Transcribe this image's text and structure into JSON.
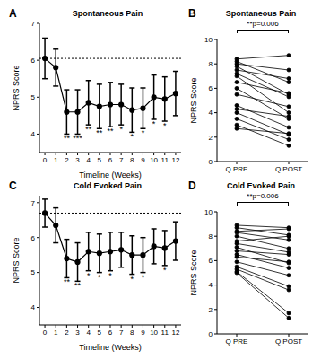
{
  "chart_data": [
    {
      "panel": "A",
      "type": "line",
      "title": "Spontaneous Pain",
      "x_label": "Timeline (Weeks)",
      "y_label": "NPRS Score",
      "x": [
        0,
        1,
        2,
        3,
        4,
        5,
        6,
        7,
        8,
        9,
        10,
        11,
        12
      ],
      "values": [
        6.05,
        5.8,
        4.6,
        4.6,
        4.85,
        4.75,
        4.8,
        4.8,
        4.65,
        4.7,
        5.0,
        4.95,
        5.1
      ],
      "errors": [
        0.55,
        0.5,
        0.6,
        0.6,
        0.6,
        0.6,
        0.6,
        0.55,
        0.6,
        0.55,
        0.6,
        0.6,
        0.6
      ],
      "significance": [
        null,
        null,
        "**",
        "***",
        "**",
        "**",
        "**",
        "*",
        "*",
        "*",
        "*",
        "*",
        null
      ],
      "reference_line": 6.05,
      "xlim": [
        -0.5,
        12.5
      ],
      "xticks": [
        0,
        1,
        2,
        3,
        4,
        5,
        6,
        7,
        8,
        9,
        10,
        11,
        12
      ],
      "ylim": [
        3.5,
        7
      ],
      "yticks": [
        4,
        5,
        6,
        7
      ],
      "color": "#000000",
      "marker": "circle",
      "line_style": "solid"
    },
    {
      "panel": "B",
      "type": "line",
      "title": "Spontaneous Pain",
      "y_label": "NPRS Score",
      "categories": [
        "Q PRE",
        "Q POST"
      ],
      "series": [
        {
          "values": [
            8.4,
            8.7
          ]
        },
        {
          "values": [
            8.2,
            6.5
          ]
        },
        {
          "values": [
            8.0,
            7.5
          ]
        },
        {
          "values": [
            7.8,
            5.5
          ]
        },
        {
          "values": [
            7.5,
            6.8
          ]
        },
        {
          "values": [
            7.2,
            5.3
          ]
        },
        {
          "values": [
            7.0,
            4.0
          ]
        },
        {
          "values": [
            6.5,
            5.6
          ]
        },
        {
          "values": [
            6.0,
            3.5
          ]
        },
        {
          "values": [
            5.5,
            4.5
          ]
        },
        {
          "values": [
            4.6,
            2.8
          ]
        },
        {
          "values": [
            4.3,
            3.7
          ]
        },
        {
          "values": [
            4.0,
            2.2
          ]
        },
        {
          "values": [
            3.5,
            1.8
          ]
        },
        {
          "values": [
            3.0,
            1.3
          ]
        },
        {
          "values": [
            2.7,
            2.3
          ]
        }
      ],
      "annotation": "**p=0.006",
      "ylim": [
        0,
        10
      ],
      "yticks": [
        0,
        2,
        4,
        6,
        8,
        10
      ],
      "color": "#000000",
      "marker": "circle",
      "line_style": "solid"
    },
    {
      "panel": "C",
      "type": "line",
      "title": "Cold Evoked Pain",
      "x_label": "Timeline (Weeks)",
      "y_label": "NPRS Score",
      "x": [
        0,
        1,
        2,
        3,
        4,
        5,
        6,
        7,
        8,
        9,
        10,
        11,
        12
      ],
      "values": [
        6.7,
        6.35,
        5.4,
        5.3,
        5.6,
        5.55,
        5.6,
        5.65,
        5.5,
        5.5,
        5.75,
        5.7,
        5.9
      ],
      "errors": [
        0.4,
        0.5,
        0.55,
        0.55,
        0.55,
        0.55,
        0.55,
        0.5,
        0.55,
        0.5,
        0.5,
        0.5,
        0.55
      ],
      "significance": [
        null,
        null,
        "**",
        "**",
        "*",
        "*",
        "*",
        null,
        "*",
        "*",
        null,
        "*",
        null
      ],
      "reference_line": 6.7,
      "xlim": [
        -0.5,
        12.5
      ],
      "xticks": [
        0,
        1,
        2,
        3,
        4,
        5,
        6,
        7,
        8,
        9,
        10,
        11,
        12
      ],
      "ylim": [
        3.5,
        7.2
      ],
      "yticks": [
        4,
        5,
        6,
        7
      ],
      "color": "#000000",
      "marker": "circle",
      "line_style": "solid"
    },
    {
      "panel": "D",
      "type": "line",
      "title": "Cold Evoked Pain",
      "y_label": "NPRS Score",
      "categories": [
        "Q PRE",
        "Q POST"
      ],
      "series": [
        {
          "values": [
            8.9,
            8.7
          ]
        },
        {
          "values": [
            8.7,
            8.1
          ]
        },
        {
          "values": [
            8.4,
            8.6
          ]
        },
        {
          "values": [
            8.3,
            7.7
          ]
        },
        {
          "values": [
            8.0,
            7.0
          ]
        },
        {
          "values": [
            7.6,
            8.0
          ]
        },
        {
          "values": [
            7.4,
            6.7
          ]
        },
        {
          "values": [
            7.1,
            5.8
          ]
        },
        {
          "values": [
            6.8,
            6.5
          ]
        },
        {
          "values": [
            6.5,
            5.4
          ]
        },
        {
          "values": [
            6.3,
            5.9
          ]
        },
        {
          "values": [
            5.9,
            4.8
          ]
        },
        {
          "values": [
            5.5,
            3.9
          ]
        },
        {
          "values": [
            5.3,
            3.6
          ]
        },
        {
          "values": [
            5.1,
            1.7
          ]
        },
        {
          "values": [
            5.0,
            1.3
          ]
        }
      ],
      "annotation": "**p=0.006",
      "ylim": [
        0,
        10
      ],
      "yticks": [
        0,
        2,
        4,
        6,
        8,
        10
      ],
      "color": "#000000",
      "marker": "circle",
      "line_style": "solid"
    }
  ]
}
